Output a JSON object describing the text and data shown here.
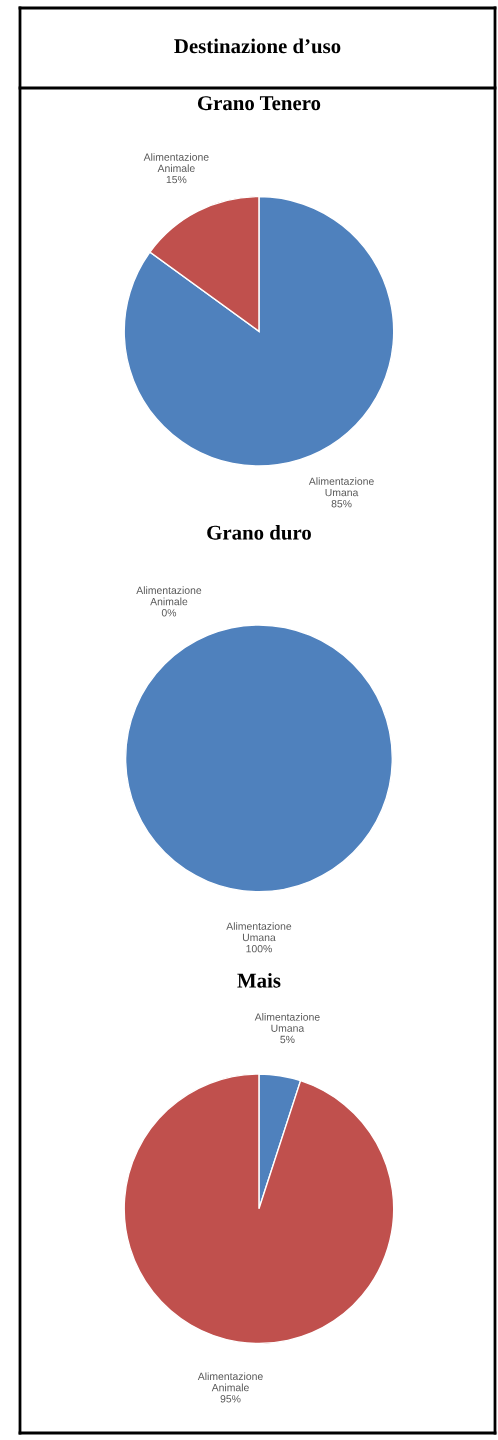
{
  "chart_data": [
    {
      "type": "pie",
      "title": "Grano Tenero",
      "annotations": [
        "Destinazione d’uso"
      ],
      "categories": [
        "Alimentazione Umana",
        "Alimentazione Animale"
      ],
      "values": [
        85,
        15
      ],
      "value_labels": [
        "85%",
        "15%"
      ],
      "colors": [
        "#4f81bd",
        "#c0504d"
      ]
    },
    {
      "type": "pie",
      "title": "Grano duro",
      "categories": [
        "Alimentazione Umana",
        "Alimentazione Animale"
      ],
      "values": [
        100,
        0
      ],
      "value_labels": [
        "100%",
        "0%"
      ],
      "colors": [
        "#4f81bd",
        "#c0504d"
      ]
    },
    {
      "type": "pie",
      "title": "Mais",
      "categories": [
        "Alimentazione Umana",
        "Alimentazione Animale"
      ],
      "values": [
        5,
        95
      ],
      "value_labels": [
        "5%",
        "95%"
      ],
      "colors": [
        "#4f81bd",
        "#c0504d"
      ]
    }
  ]
}
